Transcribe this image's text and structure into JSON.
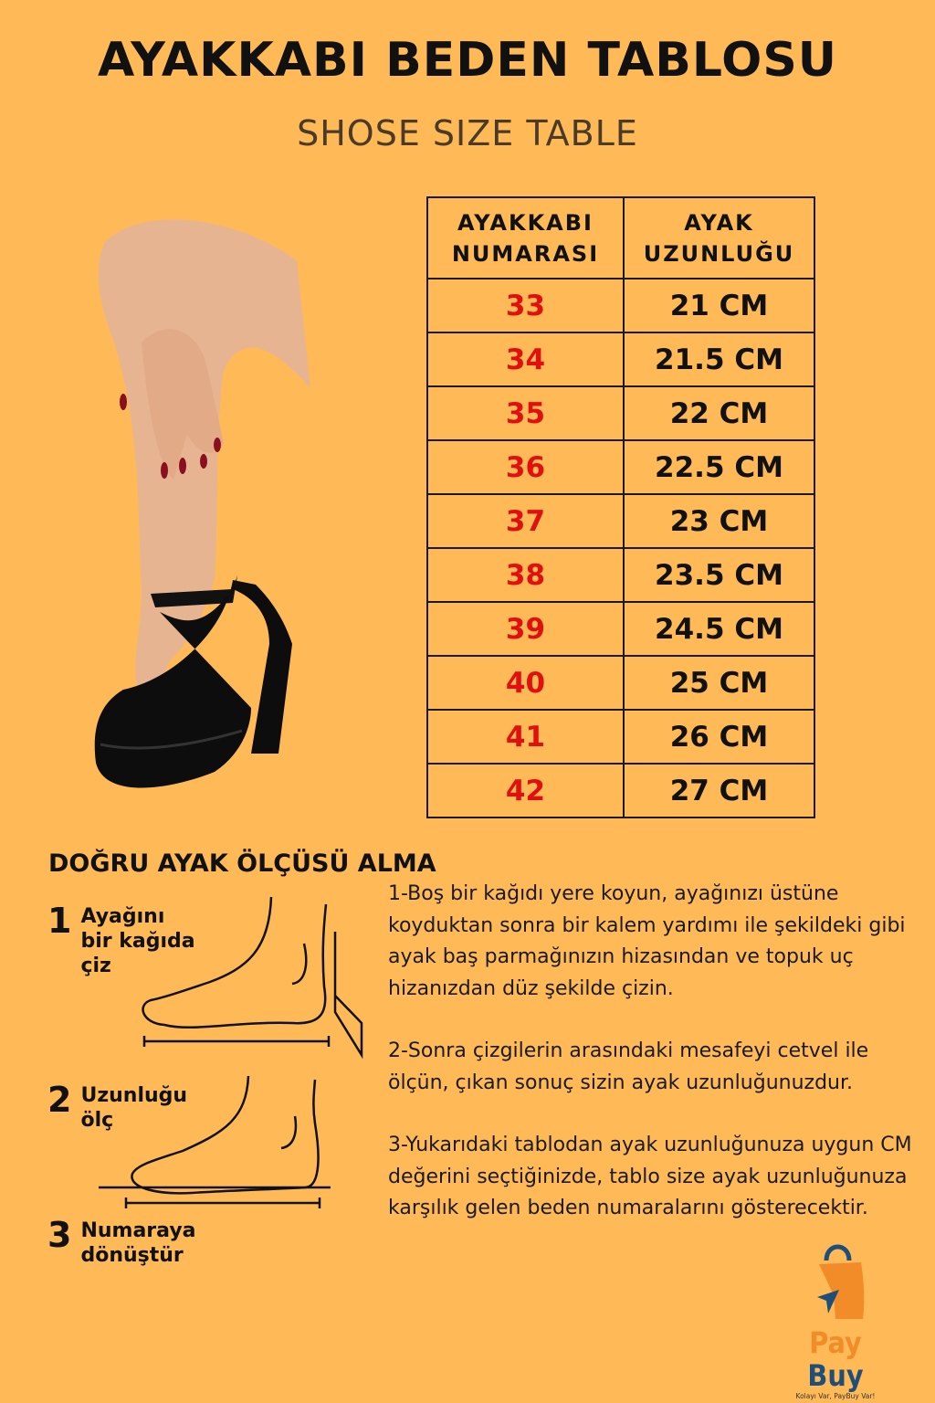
{
  "header": {
    "title": "AYAKKABI BEDEN TABLOSU",
    "subtitle": "SHOSE SIZE TABLE"
  },
  "table": {
    "headers": [
      [
        "AYAKKABI",
        "NUMARASI"
      ],
      [
        "AYAK",
        "UZUNLUĞU"
      ]
    ],
    "rows": [
      {
        "size": "33",
        "length": "21 CM"
      },
      {
        "size": "34",
        "length": "21.5 CM"
      },
      {
        "size": "35",
        "length": "22 CM"
      },
      {
        "size": "36",
        "length": "22.5 CM"
      },
      {
        "size": "37",
        "length": "23 CM"
      },
      {
        "size": "38",
        "length": "23.5 CM"
      },
      {
        "size": "39",
        "length": "24.5 CM"
      },
      {
        "size": "40",
        "length": "25 CM"
      },
      {
        "size": "41",
        "length": "26 CM"
      },
      {
        "size": "42",
        "length": "27 CM"
      }
    ]
  },
  "howto": {
    "title": "DOĞRU AYAK ÖLÇÜSÜ ALMA",
    "steps": [
      {
        "num": "1",
        "lines": [
          "Ayağını",
          "bir kağıda",
          "çiz"
        ]
      },
      {
        "num": "2",
        "lines": [
          "Uzunluğu",
          "ölç"
        ]
      },
      {
        "num": "3",
        "lines": [
          "Numaraya",
          "dönüştür"
        ]
      }
    ],
    "instructions": [
      "1-Boş bir kağıdı yere koyun, ayağınızı üstüne koyduktan sonra bir kalem yardımı ile şekildeki gibi ayak baş parmağınızın hizasından ve topuk uç hizanızdan düz şekilde çizin.",
      "2-Sonra çizgilerin arasındaki mesafeyi cetvel ile ölçün, çıkan sonuç sizin ayak uzunluğunuzdur.",
      "3-Yukarıdaki tablodan ayak uzunluğunuza uygun CM değerini seçtiğinizde, tablo size ayak uzunluğunuza karşılık gelen beden numaralarını gösterecektir."
    ]
  },
  "logo": {
    "pay": "Pay",
    "buy": "Buy",
    "tagline": "Kolayı Var, PayBuy Var!"
  },
  "colors": {
    "background": "#FFBA57",
    "size_red": "#E01010",
    "logo_orange": "#F28C28",
    "logo_blue": "#1F4E79"
  }
}
